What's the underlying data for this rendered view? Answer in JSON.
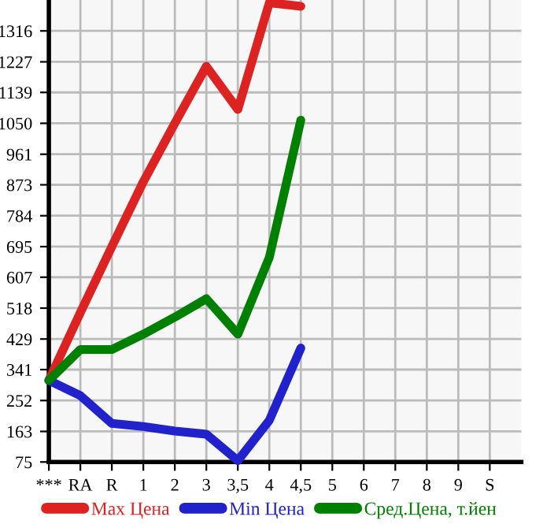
{
  "chart_data": {
    "type": "line",
    "categories": [
      "***",
      "RA",
      "R",
      "1",
      "2",
      "3",
      "3,5",
      "4",
      "4,5",
      "5",
      "6",
      "7",
      "8",
      "9",
      "S"
    ],
    "series": [
      {
        "name": "Max Цена",
        "color": "#dd2222",
        "values": [
          310,
          505,
          695,
          882,
          1050,
          1214,
          1090,
          1397,
          1387,
          null,
          null,
          null,
          null,
          null,
          null
        ]
      },
      {
        "name": "Min Цена",
        "color": "#2222cc",
        "values": [
          310,
          266,
          186,
          177,
          164,
          155,
          79,
          195,
          403,
          null,
          null,
          null,
          null,
          null,
          null
        ]
      },
      {
        "name": "Сред.Цена, т.йен",
        "color": "#008000",
        "values": [
          310,
          399,
          399,
          443,
          492,
          545,
          443,
          664,
          1059,
          null,
          null,
          null,
          null,
          null,
          null
        ]
      }
    ],
    "ylim": [
      75,
      1405
    ],
    "yticks": [
      75,
      163,
      252,
      341,
      429,
      518,
      607,
      695,
      784,
      873,
      961,
      1050,
      1139,
      1227,
      1316
    ],
    "grid": true,
    "legend": "bottom",
    "marker": "none",
    "line_style": "solid"
  }
}
